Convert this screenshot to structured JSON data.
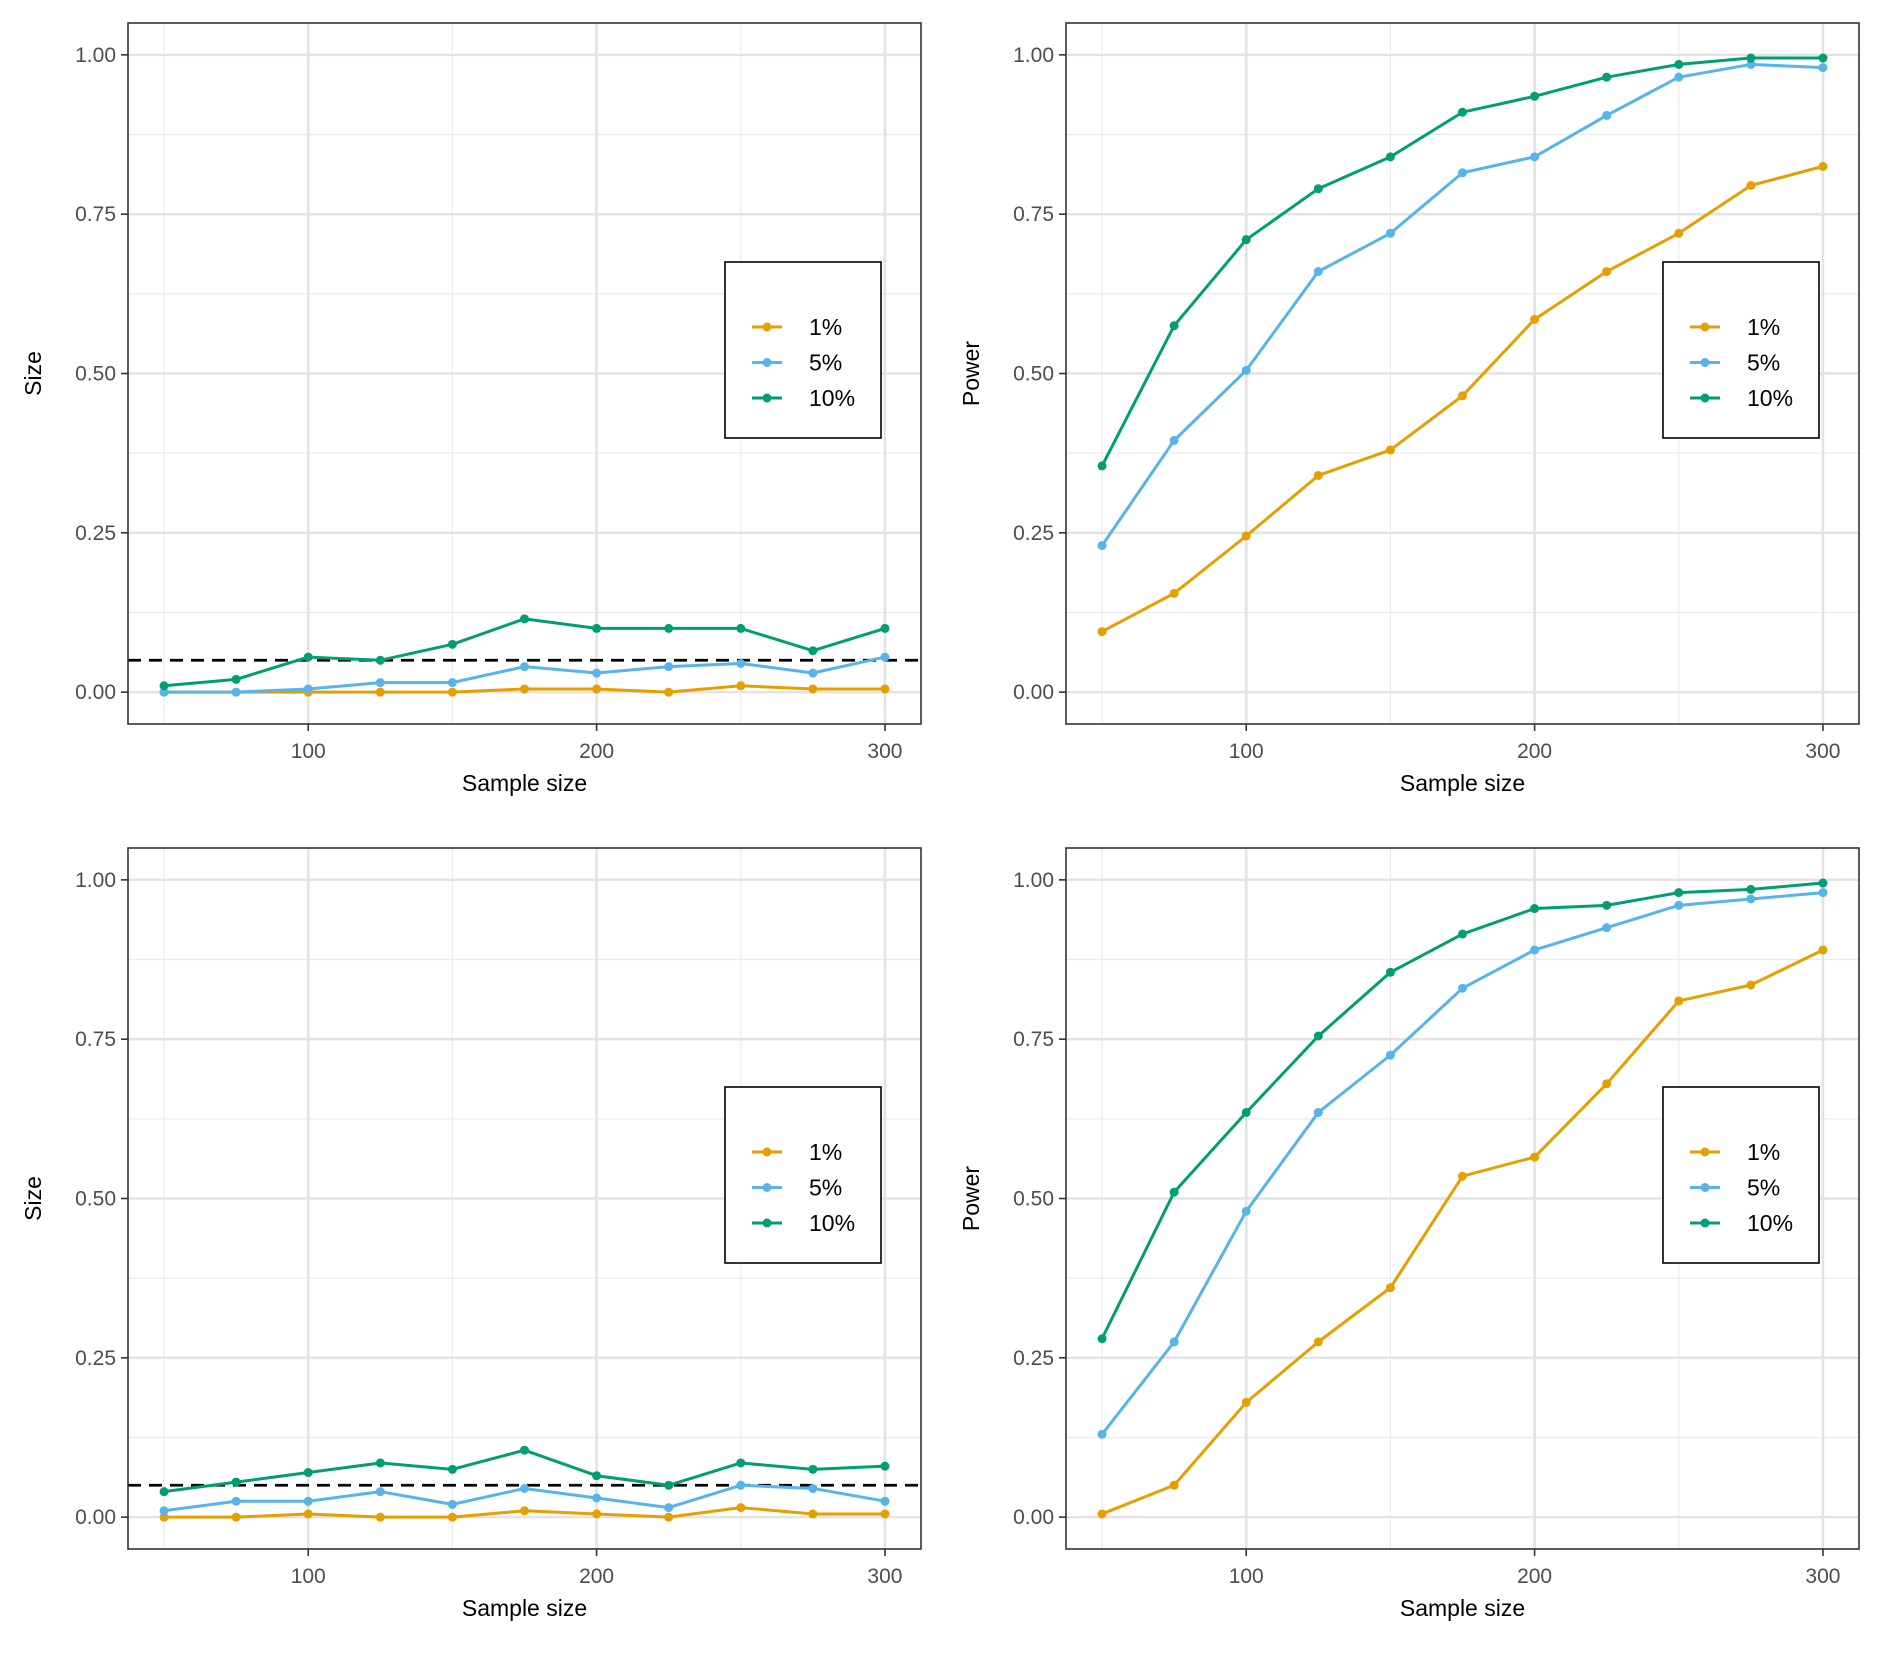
{
  "chart_data": [
    {
      "type": "line",
      "xlabel": "Sample size",
      "ylabel": "Size",
      "x": [
        50,
        75,
        100,
        125,
        150,
        175,
        200,
        225,
        250,
        275,
        300
      ],
      "xlim": [
        37.5,
        312.5
      ],
      "ylim": [
        -0.05,
        1.05
      ],
      "xticks": [
        "100",
        "200",
        "300"
      ],
      "yticks": [
        "0.00",
        "0.25",
        "0.50",
        "0.75",
        "1.00"
      ],
      "reference_line": 0.05,
      "legend": "right",
      "series": [
        {
          "name": "1%",
          "color": "#E69F00",
          "values": [
            0.0,
            0.0,
            0.0,
            0.0,
            0.0,
            0.005,
            0.005,
            0.0,
            0.01,
            0.005,
            0.005
          ]
        },
        {
          "name": "5%",
          "color": "#56B4E9",
          "values": [
            0.0,
            0.0,
            0.005,
            0.015,
            0.015,
            0.04,
            0.03,
            0.04,
            0.045,
            0.03,
            0.055
          ]
        },
        {
          "name": "10%",
          "color": "#009E73",
          "values": [
            0.01,
            0.02,
            0.055,
            0.05,
            0.075,
            0.115,
            0.1,
            0.1,
            0.1,
            0.065,
            0.1
          ]
        }
      ]
    },
    {
      "type": "line",
      "xlabel": "Sample size",
      "ylabel": "Power",
      "x": [
        50,
        75,
        100,
        125,
        150,
        175,
        200,
        225,
        250,
        275,
        300
      ],
      "xlim": [
        37.5,
        312.5
      ],
      "ylim": [
        -0.05,
        1.05
      ],
      "xticks": [
        "100",
        "200",
        "300"
      ],
      "yticks": [
        "0.00",
        "0.25",
        "0.50",
        "0.75",
        "1.00"
      ],
      "legend": "right",
      "series": [
        {
          "name": "1%",
          "color": "#E69F00",
          "values": [
            0.095,
            0.155,
            0.245,
            0.34,
            0.38,
            0.465,
            0.585,
            0.66,
            0.72,
            0.795,
            0.825
          ]
        },
        {
          "name": "5%",
          "color": "#56B4E9",
          "values": [
            0.23,
            0.395,
            0.505,
            0.66,
            0.72,
            0.815,
            0.84,
            0.905,
            0.965,
            0.985,
            0.98
          ]
        },
        {
          "name": "10%",
          "color": "#009E73",
          "values": [
            0.355,
            0.575,
            0.71,
            0.79,
            0.84,
            0.91,
            0.935,
            0.965,
            0.985,
            0.995,
            0.995
          ]
        }
      ]
    },
    {
      "type": "line",
      "xlabel": "Sample size",
      "ylabel": "Size",
      "x": [
        50,
        75,
        100,
        125,
        150,
        175,
        200,
        225,
        250,
        275,
        300
      ],
      "xlim": [
        37.5,
        312.5
      ],
      "ylim": [
        -0.05,
        1.05
      ],
      "xticks": [
        "100",
        "200",
        "300"
      ],
      "yticks": [
        "0.00",
        "0.25",
        "0.50",
        "0.75",
        "1.00"
      ],
      "reference_line": 0.05,
      "legend": "right",
      "series": [
        {
          "name": "1%",
          "color": "#E69F00",
          "values": [
            0.0,
            0.0,
            0.005,
            0.0,
            0.0,
            0.01,
            0.005,
            0.0,
            0.015,
            0.005,
            0.005
          ]
        },
        {
          "name": "5%",
          "color": "#56B4E9",
          "values": [
            0.01,
            0.025,
            0.025,
            0.04,
            0.02,
            0.045,
            0.03,
            0.015,
            0.05,
            0.045,
            0.025
          ]
        },
        {
          "name": "10%",
          "color": "#009E73",
          "values": [
            0.04,
            0.055,
            0.07,
            0.085,
            0.075,
            0.105,
            0.065,
            0.05,
            0.085,
            0.075,
            0.08
          ]
        }
      ]
    },
    {
      "type": "line",
      "xlabel": "Sample size",
      "ylabel": "Power",
      "x": [
        50,
        75,
        100,
        125,
        150,
        175,
        200,
        225,
        250,
        275,
        300
      ],
      "xlim": [
        37.5,
        312.5
      ],
      "ylim": [
        -0.05,
        1.05
      ],
      "xticks": [
        "100",
        "200",
        "300"
      ],
      "yticks": [
        "0.00",
        "0.25",
        "0.50",
        "0.75",
        "1.00"
      ],
      "legend": "right",
      "series": [
        {
          "name": "1%",
          "color": "#E69F00",
          "values": [
            0.005,
            0.05,
            0.18,
            0.275,
            0.36,
            0.535,
            0.565,
            0.68,
            0.81,
            0.835,
            0.89
          ]
        },
        {
          "name": "5%",
          "color": "#56B4E9",
          "values": [
            0.13,
            0.275,
            0.48,
            0.635,
            0.725,
            0.83,
            0.89,
            0.925,
            0.96,
            0.97,
            0.98
          ]
        },
        {
          "name": "10%",
          "color": "#009E73",
          "values": [
            0.28,
            0.51,
            0.635,
            0.755,
            0.855,
            0.915,
            0.955,
            0.96,
            0.98,
            0.985,
            0.995
          ]
        }
      ]
    }
  ]
}
